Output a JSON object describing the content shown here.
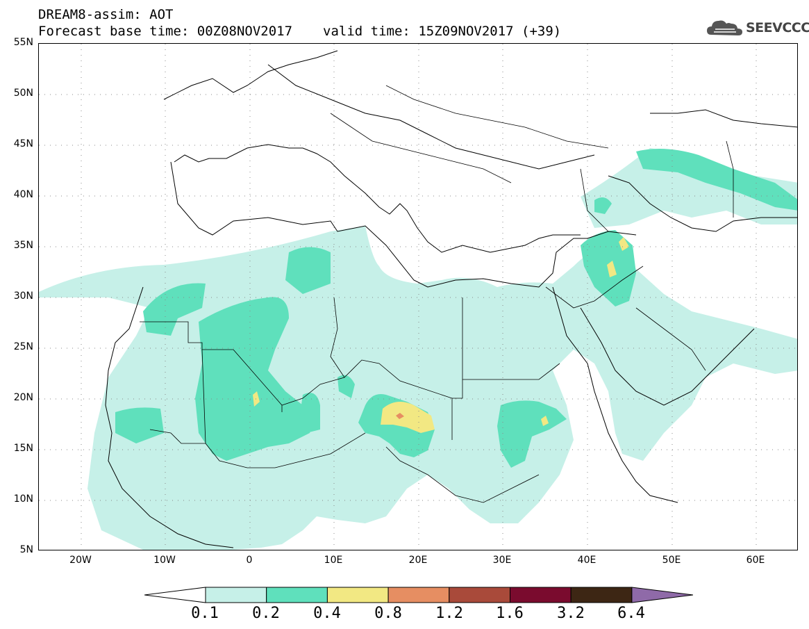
{
  "title": {
    "line1": "DREAM8-assim: AOT",
    "base_time": "Forecast base time: 00Z08NOV2017",
    "valid_time": "valid time: 15Z09NOV2017 (+39)"
  },
  "logo": {
    "text": "SEEVCCC",
    "icon": "cloud-icon"
  },
  "map": {
    "lon_range": [
      -25,
      65
    ],
    "lat_range": [
      5,
      55
    ],
    "lat_labels": [
      "55N",
      "50N",
      "45N",
      "40N",
      "35N",
      "30N",
      "25N",
      "20N",
      "15N",
      "10N",
      "5N"
    ],
    "lon_labels": [
      "20W",
      "10W",
      "0",
      "10E",
      "20E",
      "30E",
      "40E",
      "50E",
      "60E"
    ],
    "grid": "dotted",
    "field": "Aerosol optical thickness (AOT) forecast over North Africa, Middle East and Europe"
  },
  "colorbar": {
    "labels": [
      "0.1",
      "0.2",
      "0.4",
      "0.8",
      "1.2",
      "1.6",
      "3.2",
      "6.4"
    ],
    "colors": [
      "#c6f0e8",
      "#5fe0bc",
      "#f2e883",
      "#e68e62",
      "#a94a3a",
      "#7a0b2e",
      "#3d2614",
      "#8f6aa8"
    ],
    "below_color": "#ffffff"
  }
}
